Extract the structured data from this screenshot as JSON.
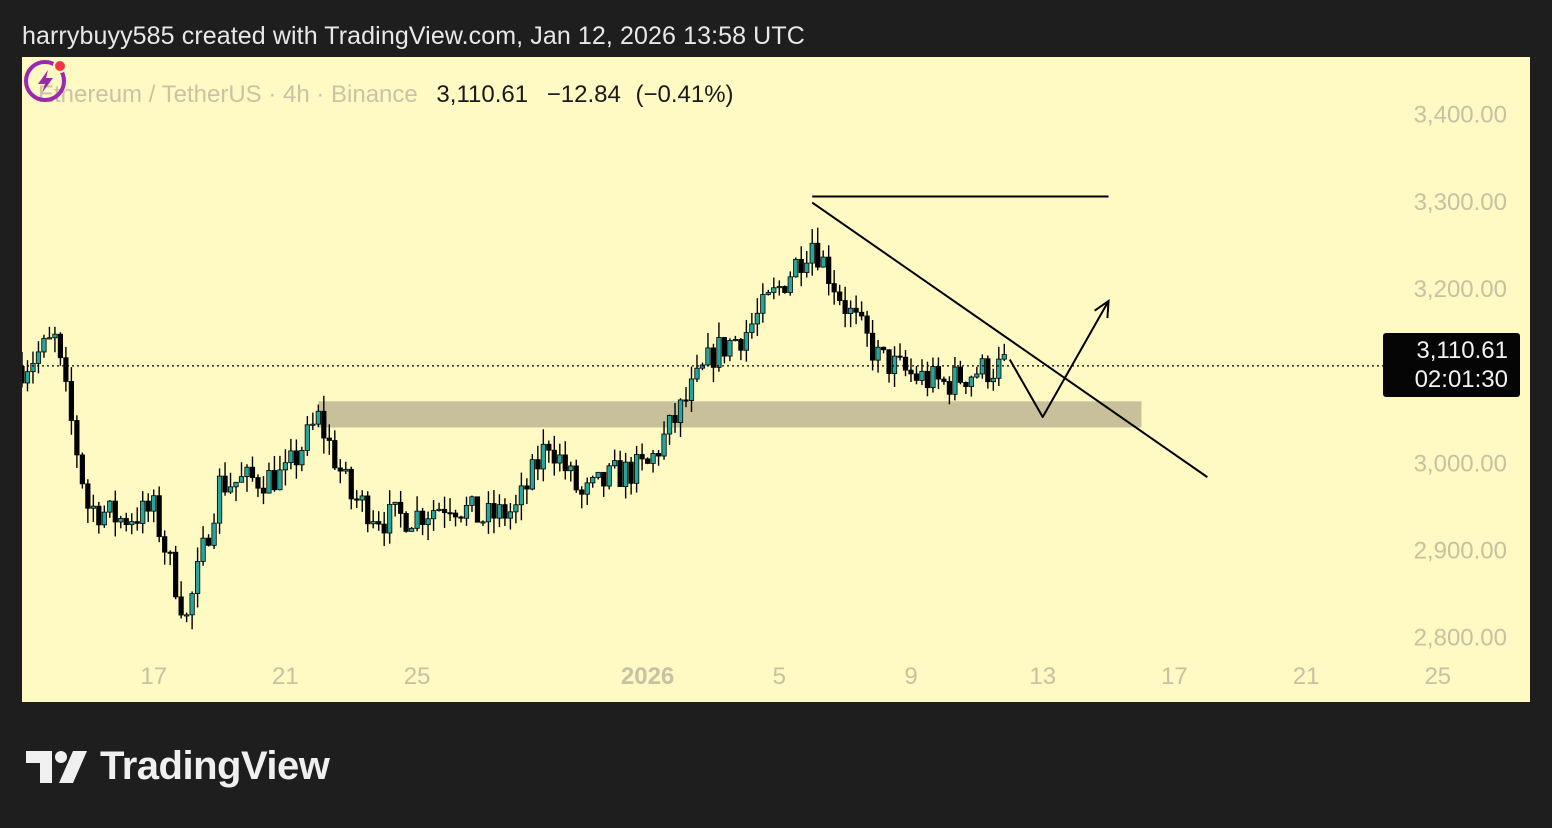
{
  "header": {
    "text": "harrybuyy585 created with TradingView.com, Jan 12, 2026 13:58 UTC"
  },
  "legend": {
    "symbol": "Ethereum / TetherUS · 4h · Binance",
    "last": "3,110.61",
    "change": "−12.84",
    "change_pct": "(−0.41%)"
  },
  "price_tag": {
    "price": "3,110.61",
    "countdown": "02:01:30"
  },
  "brand": {
    "name": "TradingView"
  },
  "colors": {
    "background": "#fff9c4",
    "up": "#26a69a",
    "down": "#000000",
    "zone": "#c8c09a"
  },
  "icons": {
    "flash": "lightning-bolt-icon",
    "logo": "tradingview-logo-icon"
  },
  "chart_data": {
    "type": "candlestick",
    "symbol": "ETHUSDT",
    "interval": "4h",
    "exchange": "Binance",
    "y_ticks": [
      {
        "value": 3400,
        "label": "3,400.00"
      },
      {
        "value": 3300,
        "label": "3,300.00"
      },
      {
        "value": 3200,
        "label": "3,200.00"
      },
      {
        "value": 3000,
        "label": "3,000.00"
      },
      {
        "value": 2900,
        "label": "2,900.00"
      },
      {
        "value": 2800,
        "label": "2,800.00"
      }
    ],
    "x_ticks": [
      {
        "day": 17,
        "label": "17"
      },
      {
        "day": 21,
        "label": "21"
      },
      {
        "day": 25,
        "label": "25"
      },
      {
        "day": 32,
        "label": "2026",
        "bold": true
      },
      {
        "day": 36,
        "label": "5"
      },
      {
        "day": 40,
        "label": "9"
      },
      {
        "day": 44,
        "label": "13"
      },
      {
        "day": 48,
        "label": "17"
      },
      {
        "day": 52,
        "label": "21"
      },
      {
        "day": 56,
        "label": "25"
      }
    ],
    "ylim": [
      2725,
      3465
    ],
    "x_range_days": [
      13.0,
      58.8
    ],
    "current_price": 3110.61,
    "support_zone": {
      "start": "2025-12-22",
      "end": "2026-01-16",
      "low": 3040,
      "high": 3070
    },
    "horizontal_resistance": {
      "start": "2026-01-06",
      "end": "2026-01-15",
      "price": 3305
    },
    "trendline": [
      {
        "date": "2026-01-06",
        "price": 3298
      },
      {
        "date": "2026-01-18",
        "price": 2983
      }
    ],
    "projection_path": [
      {
        "date": "2026-01-12",
        "price": 3118
      },
      {
        "date": "2026-01-13",
        "price": 3052
      },
      {
        "date": "2026-01-15",
        "price": 3185
      }
    ],
    "closes": [
      {
        "date": "2025-12-13",
        "close": 3110
      },
      {
        "date": "2025-12-14",
        "close": 3140
      },
      {
        "date": "2025-12-15",
        "close": 2950
      },
      {
        "date": "2025-12-16",
        "close": 2935
      },
      {
        "date": "2025-12-17",
        "close": 2945
      },
      {
        "date": "2025-12-18",
        "close": 2820
      },
      {
        "date": "2025-12-19",
        "close": 2975
      },
      {
        "date": "2025-12-20",
        "close": 2980
      },
      {
        "date": "2025-12-21",
        "close": 2985
      },
      {
        "date": "2025-12-22",
        "close": 3050
      },
      {
        "date": "2025-12-23",
        "close": 2960
      },
      {
        "date": "2025-12-24",
        "close": 2935
      },
      {
        "date": "2025-12-25",
        "close": 2940
      },
      {
        "date": "2025-12-26",
        "close": 2955
      },
      {
        "date": "2025-12-27",
        "close": 2935
      },
      {
        "date": "2025-12-28",
        "close": 2945
      },
      {
        "date": "2025-12-29",
        "close": 3025
      },
      {
        "date": "2025-12-30",
        "close": 2960
      },
      {
        "date": "2025-12-31",
        "close": 2985
      },
      {
        "date": "2026-01-01",
        "close": 2995
      },
      {
        "date": "2026-01-02",
        "close": 3060
      },
      {
        "date": "2026-01-03",
        "close": 3125
      },
      {
        "date": "2026-01-04",
        "close": 3150
      },
      {
        "date": "2026-01-05",
        "close": 3200
      },
      {
        "date": "2026-01-06",
        "close": 3255
      },
      {
        "date": "2026-01-07",
        "close": 3180
      },
      {
        "date": "2026-01-08",
        "close": 3120
      },
      {
        "date": "2026-01-09",
        "close": 3100
      },
      {
        "date": "2026-01-10",
        "close": 3090
      },
      {
        "date": "2026-01-11",
        "close": 3105
      },
      {
        "date": "2026-01-12",
        "close": 3110.61
      }
    ]
  }
}
